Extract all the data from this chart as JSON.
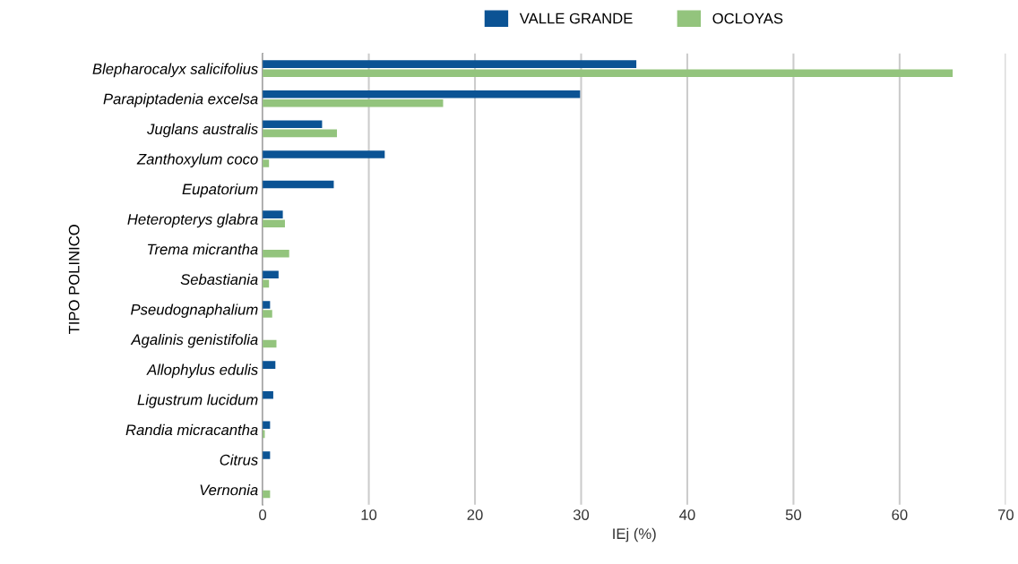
{
  "chart_data": {
    "type": "bar",
    "orientation": "horizontal",
    "xlabel": "IEj (%)",
    "ylabel": "TIPO POLINICO",
    "categories": [
      "Blepharocalyx salicifolius",
      "Parapiptadenia excelsa",
      "Juglans australis",
      "Zanthoxylum coco",
      "Eupatorium",
      "Heteropterys glabra",
      "Trema micrantha",
      "Sebastiania",
      "Pseudognaphalium",
      "Agalinis genistifolia",
      "Allophylus edulis",
      "Ligustrum lucidum",
      "Randia micracantha",
      "Citrus",
      "Vernonia"
    ],
    "series": [
      {
        "name": "VALLE GRANDE",
        "color": "#0b5394",
        "values": [
          35.2,
          29.9,
          5.6,
          11.5,
          6.7,
          1.9,
          null,
          1.5,
          0.7,
          null,
          1.2,
          1.0,
          0.7,
          0.7,
          null
        ]
      },
      {
        "name": "OCLOYAS",
        "color": "#93c47d",
        "values": [
          65,
          17,
          7,
          0.6,
          null,
          2.1,
          2.5,
          0.6,
          0.9,
          1.3,
          null,
          null,
          0.2,
          null,
          0.7
        ]
      }
    ],
    "xlim": [
      0,
      70
    ],
    "xticks": [
      0,
      10,
      20,
      30,
      40,
      50,
      60,
      70
    ],
    "grid": "x",
    "legend": "top"
  }
}
